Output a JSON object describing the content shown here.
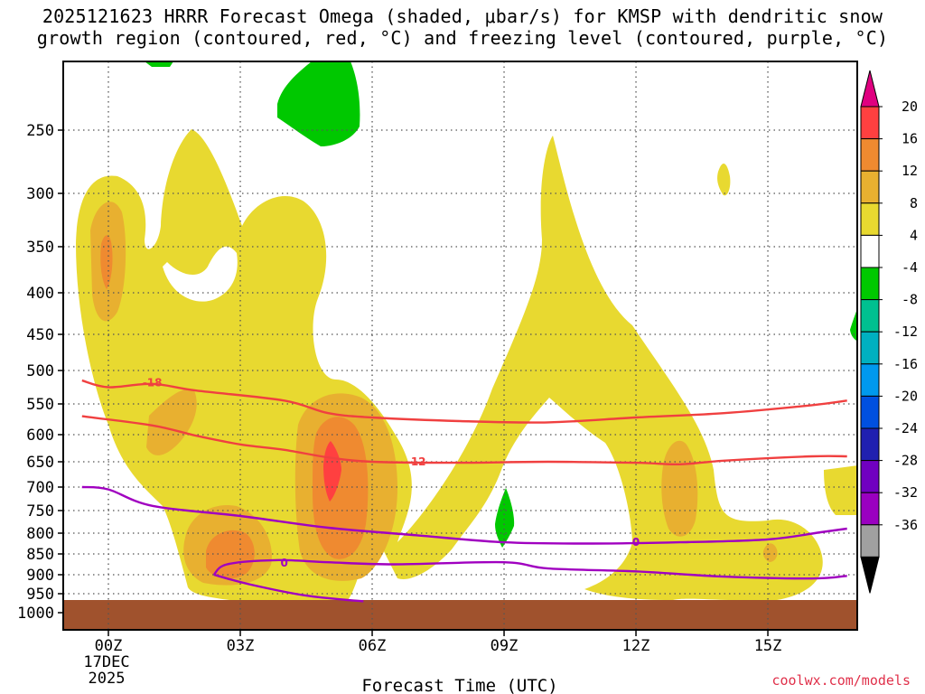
{
  "title": {
    "line1": "2025121623 HRRR Forecast Omega (shaded, μbar/s) for KMSP with dendritic snow",
    "line2": "growth region (contoured, red, °C) and freezing level (contoured, purple, °C)"
  },
  "watermark": "coolwx.com/models",
  "chart_data": {
    "type": "time-height cross section",
    "title": "2025121623 HRRR Forecast Omega (shaded, μbar/s) for KMSP with dendritic snow growth region (contoured, red, °C) and freezing level (contoured, purple, °C)",
    "xlabel": "Forecast Time (UTC)",
    "ylabel": "",
    "x_ticks": [
      {
        "label": "00Z",
        "hour": 0
      },
      {
        "label": "03Z",
        "hour": 3
      },
      {
        "label": "06Z",
        "hour": 6
      },
      {
        "label": "09Z",
        "hour": 9
      },
      {
        "label": "12Z",
        "hour": 12
      },
      {
        "label": "15Z",
        "hour": 15
      }
    ],
    "x_date_line1": "17DEC",
    "x_date_line2": "2025",
    "xlim": [
      -0.6,
      16.8
    ],
    "y_ticks": [
      250,
      300,
      350,
      400,
      450,
      500,
      550,
      600,
      650,
      700,
      750,
      800,
      850,
      900,
      950,
      1000
    ],
    "colorbar": {
      "labels": [
        "20",
        "16",
        "12",
        "8",
        "4",
        "-4",
        "-8",
        "-12",
        "-16",
        "-20",
        "-24",
        "-28",
        "-32",
        "-36"
      ],
      "colors": [
        "#ff4040",
        "#ef8a30",
        "#e8b030",
        "#e8d930",
        "#ffffff",
        "#00c800",
        "#00c090",
        "#00b0c0",
        "#0099ee",
        "#0050e0",
        "#2020b0",
        "#7000c0",
        "#9a00c0",
        "#a0a0a0"
      ],
      "top_arrow_color": "#e00080",
      "bottom_arrow_color": "#000000"
    },
    "omega_colors": {
      "c4": "#e8d930",
      "c8": "#e8b030",
      "c12": "#ef8a30",
      "c16": "#ff4040",
      "cn4": "#00c800"
    },
    "contours": {
      "dgz_color": "#f04040",
      "freezing_color": "#a000c0",
      "dgz_minus18_hpa": [
        [
          -0.6,
          515
        ],
        [
          0,
          525
        ],
        [
          1,
          520
        ],
        [
          2,
          530
        ],
        [
          4,
          545
        ],
        [
          5,
          565
        ],
        [
          6,
          572
        ],
        [
          8,
          578
        ],
        [
          10,
          580
        ],
        [
          12,
          572
        ],
        [
          14,
          565
        ],
        [
          16,
          552
        ],
        [
          16.8,
          545
        ]
      ],
      "dgz_minus12_hpa": [
        [
          -0.6,
          570
        ],
        [
          1,
          585
        ],
        [
          2,
          602
        ],
        [
          3,
          618
        ],
        [
          4,
          628
        ],
        [
          5,
          642
        ],
        [
          6,
          650
        ],
        [
          8,
          652
        ],
        [
          10,
          650
        ],
        [
          12,
          652
        ],
        [
          13,
          655
        ],
        [
          14,
          648
        ],
        [
          16,
          640
        ],
        [
          16.8,
          640
        ]
      ],
      "freezing_0_upper_hpa": [
        [
          -0.6,
          700
        ],
        [
          0,
          705
        ],
        [
          1,
          740
        ],
        [
          3,
          762
        ],
        [
          5,
          788
        ],
        [
          7,
          805
        ],
        [
          9,
          822
        ],
        [
          11,
          825
        ],
        [
          13,
          822
        ],
        [
          15,
          815
        ],
        [
          16.2,
          798
        ],
        [
          16.8,
          790
        ]
      ],
      "freezing_0_lower_hpa": [
        [
          2.4,
          900
        ],
        [
          2.7,
          875
        ],
        [
          3.8,
          865
        ],
        [
          5,
          870
        ],
        [
          6.5,
          875
        ],
        [
          9,
          870
        ],
        [
          10,
          885
        ],
        [
          12,
          892
        ],
        [
          14,
          905
        ],
        [
          16,
          910
        ],
        [
          16.8,
          903
        ]
      ],
      "freezing_0_tail_hpa": [
        [
          2.4,
          900
        ],
        [
          3.2,
          925
        ],
        [
          4.5,
          955
        ],
        [
          5.8,
          970
        ]
      ],
      "labels": [
        {
          "text": "-18",
          "hour": 1.0,
          "hpa": 518,
          "kind": "dgz"
        },
        {
          "text": "-12",
          "hour": 7.0,
          "hpa": 650,
          "kind": "dgz"
        },
        {
          "text": "0",
          "hour": 4.0,
          "hpa": 872,
          "kind": "freezing"
        },
        {
          "text": "0",
          "hour": 12.0,
          "hpa": 822,
          "kind": "freezing"
        }
      ]
    },
    "ground_color": "#a0522d"
  }
}
